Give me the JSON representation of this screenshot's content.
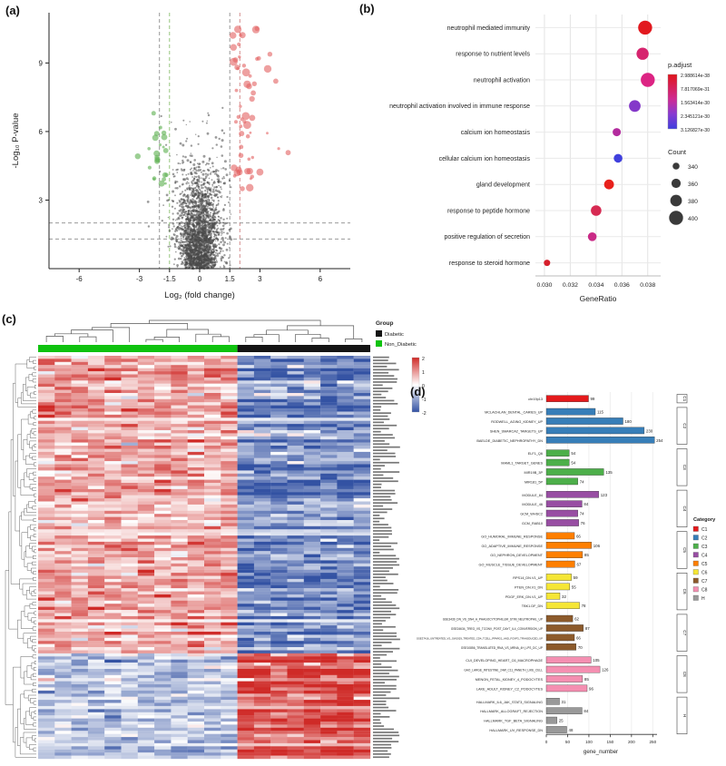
{
  "panels": {
    "a": {
      "label": "(a)"
    },
    "b": {
      "label": "(b)"
    },
    "c": {
      "label": "(c)"
    },
    "d": {
      "label": "(d)"
    }
  },
  "chart_data": [
    {
      "id": "volcano",
      "type": "scatter",
      "xlabel": "Log₂ (fold change)",
      "ylabel": "-Log₁₀ P-value",
      "xlim": [
        -7.5,
        7.5
      ],
      "ylim": [
        0,
        11.2
      ],
      "xticks": [
        -6,
        -3,
        -1.5,
        0,
        1.5,
        3,
        6
      ],
      "yticks": [
        3,
        6,
        9
      ],
      "vlines": [
        {
          "x": -2,
          "color": "#8c8c8c"
        },
        {
          "x": -1.5,
          "color": "#8cbf70"
        },
        {
          "x": 1.5,
          "color": "#8c8c8c"
        },
        {
          "x": 2,
          "color": "#cf8080"
        }
      ],
      "hlines": [
        {
          "y": 1.3,
          "color": "#8c8c8c"
        },
        {
          "y": 2,
          "color": "#8c8c8c"
        }
      ],
      "colors": {
        "up": "#e26060",
        "down": "#67b55b",
        "ns": "#4a4a4a"
      },
      "n_points": {
        "ns": 2400,
        "up": 58,
        "down": 24
      },
      "seed": 7
    },
    {
      "id": "go-dotplot",
      "type": "scatter",
      "xlabel": "GeneRatio",
      "xlim": [
        0.0293,
        0.039
      ],
      "xticks": [
        0.03,
        0.032,
        0.034,
        0.036,
        0.038
      ],
      "categories": [
        "neutrophil mediated immunity",
        "response to nutrient levels",
        "neutrophil activation",
        "neutrophil activation involved in immune response",
        "calcium ion homeostasis",
        "cellular calcium ion homeostasis",
        "gland development",
        "response to peptide hormone",
        "positive regulation of secretion",
        "response to steroid hormone"
      ],
      "gene_ratio": [
        0.0378,
        0.0376,
        0.038,
        0.037,
        0.0356,
        0.0357,
        0.035,
        0.034,
        0.0337,
        0.0302
      ],
      "count": [
        400,
        385,
        400,
        380,
        350,
        355,
        365,
        370,
        355,
        335
      ],
      "point_colors": [
        "#e2191f",
        "#d6246e",
        "#dc2483",
        "#8438c9",
        "#b32b9e",
        "#4040dd",
        "#e8211c",
        "#d62a52",
        "#c92a86",
        "#d6202c"
      ],
      "legend_padjust": {
        "title": "p.adjust",
        "labels": [
          "2.988614e-38",
          "7.817069e-31",
          "1.563414e-30",
          "2.345121e-30",
          "3.126827e-30"
        ],
        "gradient": [
          "#e0151c",
          "#cf2a92",
          "#8a3ad1",
          "#3f3fdd"
        ]
      },
      "legend_count": {
        "title": "Count",
        "sizes": [
          340,
          360,
          380,
          400
        ]
      }
    },
    {
      "id": "deg-heatmap",
      "type": "heatmap",
      "n_rows": 130,
      "n_cols": 20,
      "group_split_col": 12,
      "pattern_split_row": 96,
      "col_groups": [
        {
          "name": "Non_Diabetic",
          "color": "#0fc20f"
        },
        {
          "name": "Diabetic",
          "color": "#141414"
        }
      ],
      "legend": {
        "title": "Group",
        "items": [
          {
            "label": "Diabetic",
            "color": "#141414"
          },
          {
            "label": "Non_Diabetic",
            "color": "#0fc20f"
          }
        ]
      },
      "scale_ticks": [
        "2",
        "1",
        "0",
        "-1",
        "-2"
      ],
      "scale_colors": {
        "high": "#cf2a27",
        "mid": "#ffffff",
        "low": "#3352a3"
      },
      "seed": 11
    },
    {
      "id": "geneset-bars",
      "type": "bar",
      "xlabel": "gene_number",
      "xlim": [
        0,
        260
      ],
      "xticks": [
        0,
        50,
        100,
        150,
        200,
        250
      ],
      "legend_title": "Category",
      "groups": [
        {
          "category": "C1",
          "color": "#e41a1c",
          "items": [
            {
              "name": "chr19p13",
              "value": 99
            }
          ]
        },
        {
          "category": "C2",
          "color": "#377eb8",
          "items": [
            {
              "name": "MCLACHLAN_DENTAL_CARIES_UP",
              "value": 115
            },
            {
              "name": "RODWELL_AGING_KIDNEY_UP",
              "value": 180
            },
            {
              "name": "SHEN_SMARCA2_TARGETS_UP",
              "value": 230
            },
            {
              "name": "BAELDE_DIABETIC_NEPHROPATHY_DN",
              "value": 254
            }
          ]
        },
        {
          "category": "C3",
          "color": "#4daf4a",
          "items": [
            {
              "name": "ELF1_Q6",
              "value": 54
            },
            {
              "name": "MAML1_TARGET_GENES",
              "value": 54
            },
            {
              "name": "MIR19B_3P",
              "value": 135
            },
            {
              "name": "MIR181_5P",
              "value": 74
            }
          ]
        },
        {
          "category": "C4",
          "color": "#984ea3",
          "items": [
            {
              "name": "MODULE_84",
              "value": 123
            },
            {
              "name": "MODULE_46",
              "value": 84
            },
            {
              "name": "GCM_WHSC2",
              "value": 74
            },
            {
              "name": "GCM_RAB10",
              "value": 76
            }
          ]
        },
        {
          "category": "C5",
          "color": "#ff7f00",
          "items": [
            {
              "name": "GO_HUMORAL_IMMUNE_RESPONSE",
              "value": 66
            },
            {
              "name": "GO_ADAPTIVE_IMMUNE_RESPONSE",
              "value": 106
            },
            {
              "name": "GO_NEPHRON_DEVELOPMENT",
              "value": 85
            },
            {
              "name": "GO_MUSCLE_TISSUE_DEVELOPMENT",
              "value": 67
            }
          ]
        },
        {
          "category": "C6",
          "color": "#f5e636",
          "items": [
            {
              "name": "RPS14_DN.V1_UP",
              "value": 59
            },
            {
              "name": "PTEN_DN.V1_DN",
              "value": 55
            },
            {
              "name": "PDGF_ERK_DN.V1_UP",
              "value": 32
            },
            {
              "name": "TBK1.DF_DN",
              "value": 78
            }
          ]
        },
        {
          "category": "C7",
          "color": "#8c5a2b",
          "items": [
            {
              "name": "GSE3439_DN_VS_DN4_A_PHAGOCYTOPHILUM_STIM_NEUTROPHIL_UP",
              "value": 62
            },
            {
              "name": "GSE24634_TREG_VS_TCONV_POST_DAY7_IL4_CONVERSION_UP",
              "value": 87
            },
            {
              "name": "GSE37416_UNTREATED_VS_GW1929_TREATED_CD4_TCELL_PPARG1_AND_FOXP3_TRANSDUCED_UP",
              "value": 66
            },
            {
              "name": "GSE10856_TRANSLATED_RNA_VS_MRNA_4H_LPS_DC_UP",
              "value": 70
            }
          ]
        },
        {
          "category": "C8",
          "color": "#f48fb1",
          "items": [
            {
              "name": "CUI_DEVELOPING_HEART_C6_MACROPHAGE",
              "value": 105
            },
            {
              "name": "GAO_LARGE_INTESTINE_24W_C11_PANETH_LIKE_CELL",
              "value": 126
            },
            {
              "name": "MENON_FETAL_KIDNEY_4_PODOCYTES",
              "value": 85
            },
            {
              "name": "LAKE_ADULT_KIDNEY_C2_PODOCYTES",
              "value": 96
            }
          ]
        },
        {
          "category": "H",
          "color": "#999999",
          "items": [
            {
              "name": "HALLMARK_IL6_JAK_STAT3_SIGNALING",
              "value": 31
            },
            {
              "name": "HALLMARK_ALLOGRAFT_REJECTION",
              "value": 84
            },
            {
              "name": "HALLMARK_TGF_BETA_SIGNALING",
              "value": 25
            },
            {
              "name": "HALLMARK_UV_RESPONSE_DN",
              "value": 48
            }
          ]
        }
      ]
    }
  ]
}
